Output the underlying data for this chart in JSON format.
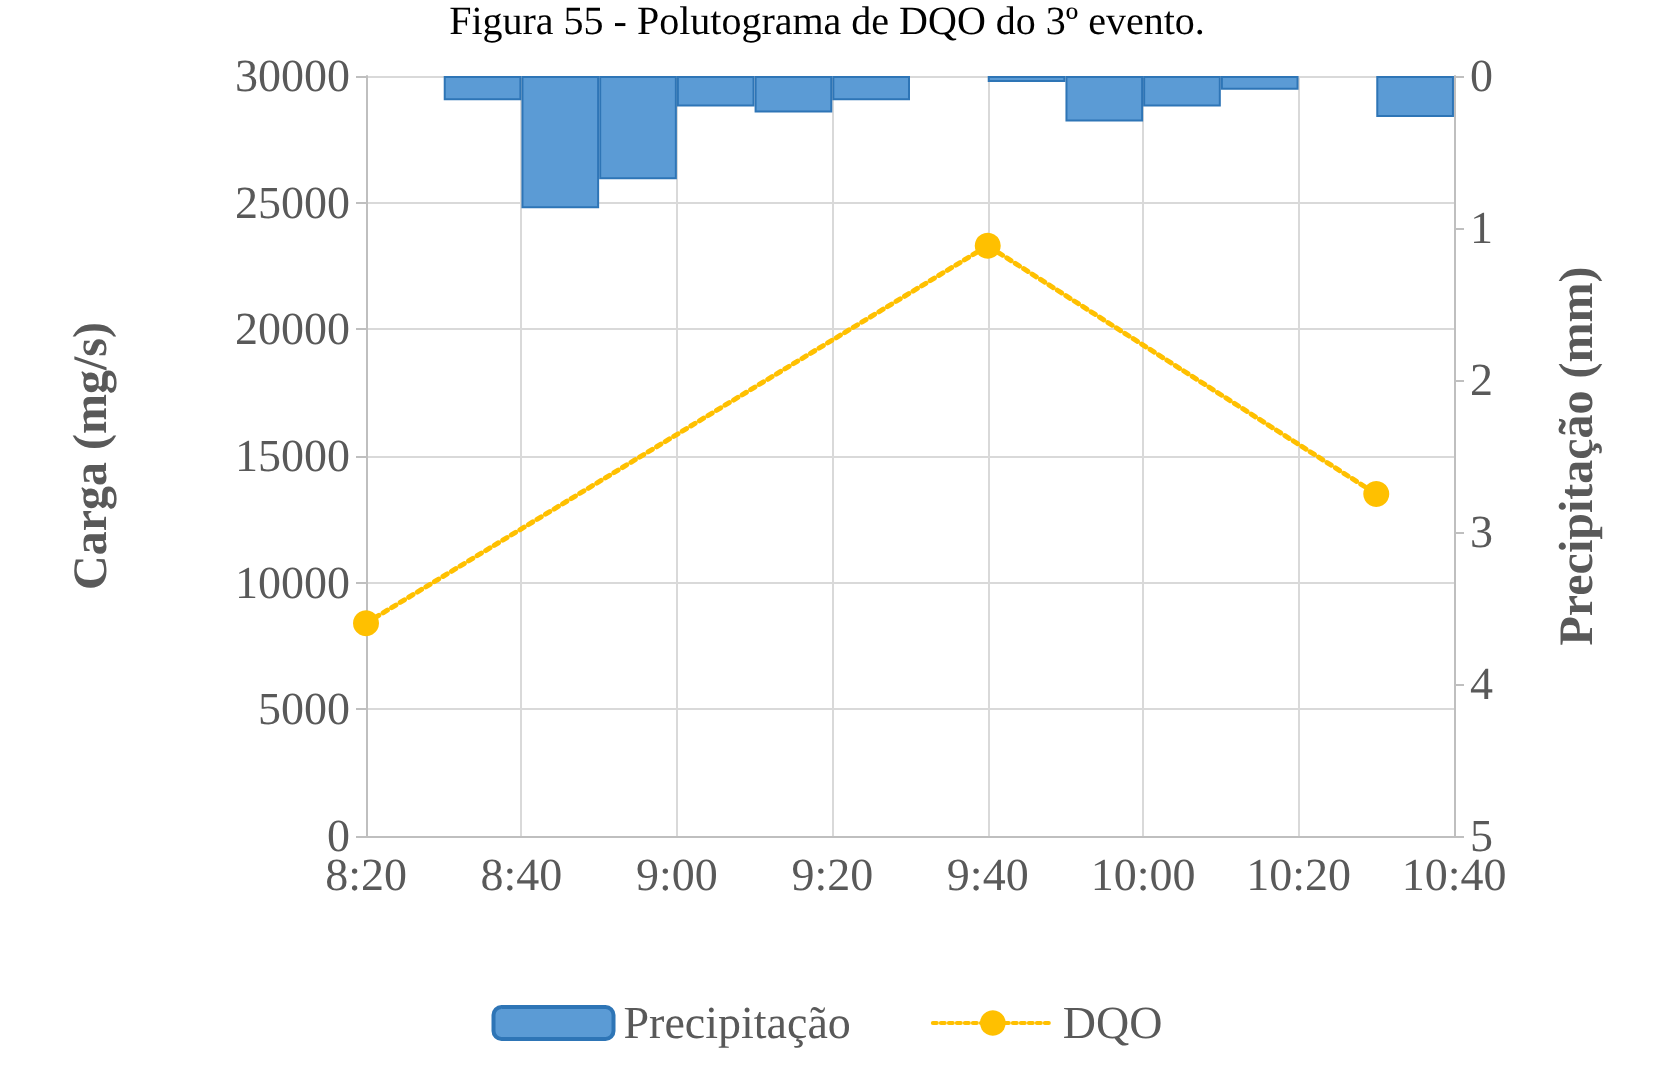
{
  "chart_data": {
    "type": "line",
    "title": "Figura 55 - Polutograma de DQO do 3º evento.",
    "ylabel": "Carga (mg/s)",
    "y2label": "Precipitação (mm)",
    "xlim": [
      8.3333,
      10.6667
    ],
    "xticks": [
      {
        "value": 8.3333,
        "label": "8:20"
      },
      {
        "value": 8.6667,
        "label": "8:40"
      },
      {
        "value": 9,
        "label": "9:00"
      },
      {
        "value": 9.3333,
        "label": "9:20"
      },
      {
        "value": 9.6667,
        "label": "9:40"
      },
      {
        "value": 10,
        "label": "10:00"
      },
      {
        "value": 10.3333,
        "label": "10:20"
      },
      {
        "value": 10.6667,
        "label": "10:40"
      }
    ],
    "ylim": [
      0,
      30000
    ],
    "yticks": [
      0,
      5000,
      10000,
      15000,
      20000,
      25000,
      30000
    ],
    "y2lim": [
      5,
      0
    ],
    "y2ticks": [
      0,
      1,
      2,
      3,
      4,
      5
    ],
    "grid": true,
    "legend": "bottom",
    "series": [
      {
        "name": "Precipitação",
        "type": "bar",
        "axis": "y2",
        "color": "#5b9bd5",
        "x": [
          8.5833,
          8.75,
          8.9167,
          9.0833,
          9.25,
          9.4167,
          9.75,
          9.9167,
          10.0833,
          10.25,
          10.5833
        ],
        "values": [
          0.16,
          0.87,
          0.68,
          0.2,
          0.24,
          0.16,
          0.04,
          0.3,
          0.2,
          0.09,
          0.27
        ]
      },
      {
        "name": "DQO",
        "color": "#ffc000",
        "marker": "circle",
        "line_style": "dotted",
        "x": [
          8.3333,
          9.6667,
          10.5
        ],
        "values": [
          8400,
          23300,
          13500
        ]
      }
    ]
  }
}
